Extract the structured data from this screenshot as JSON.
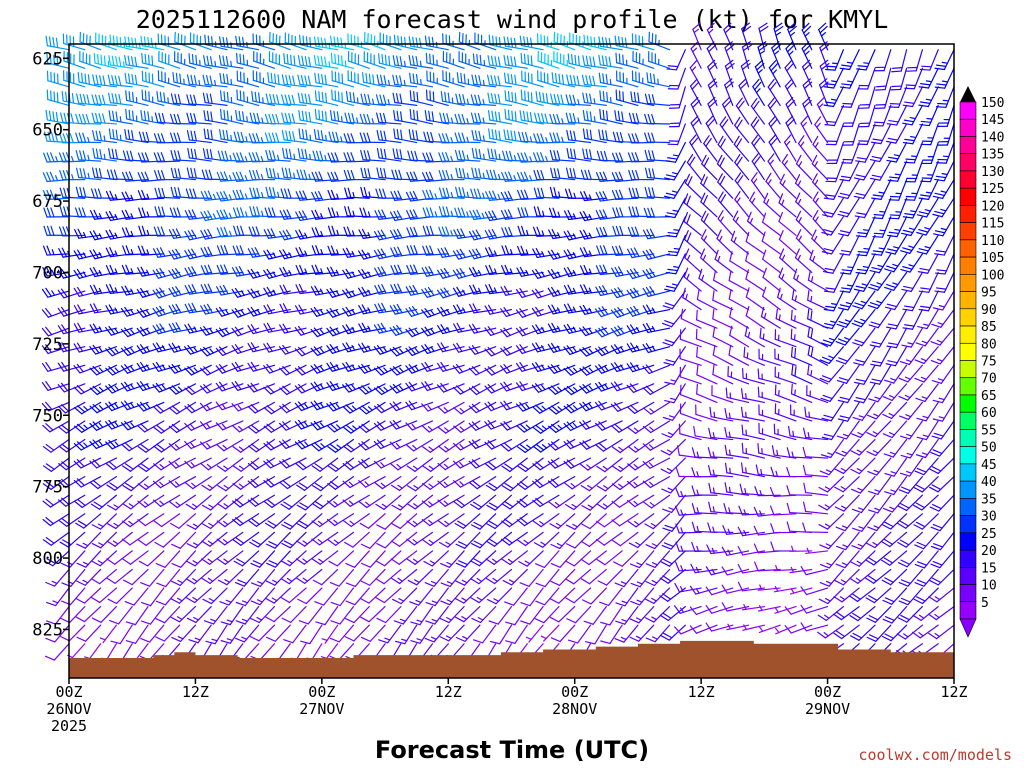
{
  "chart_data": {
    "type": "wind-barb-profile",
    "title": "2025112600 NAM forecast wind profile (kt) for KMYL",
    "xlabel": "Forecast Time (UTC)",
    "ylabel": "",
    "units": "kt",
    "y_ticks": [
      "625",
      "650",
      "675",
      "700",
      "725",
      "750",
      "775",
      "800",
      "825"
    ],
    "y_range_hpa": [
      620,
      842
    ],
    "x_range_hours": [
      0,
      84
    ],
    "x_ticks": [
      {
        "hour": 0,
        "line1": "00Z",
        "line2": "26NOV",
        "line3": "2025"
      },
      {
        "hour": 12,
        "line1": "12Z",
        "line2": "",
        "line3": ""
      },
      {
        "hour": 24,
        "line1": "00Z",
        "line2": "27NOV",
        "line3": ""
      },
      {
        "hour": 36,
        "line1": "12Z",
        "line2": "",
        "line3": ""
      },
      {
        "hour": 48,
        "line1": "00Z",
        "line2": "28NOV",
        "line3": ""
      },
      {
        "hour": 60,
        "line1": "12Z",
        "line2": "",
        "line3": ""
      },
      {
        "hour": 72,
        "line1": "00Z",
        "line2": "29NOV",
        "line3": ""
      },
      {
        "hour": 84,
        "line1": "12Z",
        "line2": "",
        "line3": ""
      }
    ],
    "colorbar": {
      "labels": [
        "150",
        "145",
        "140",
        "135",
        "130",
        "125",
        "120",
        "115",
        "110",
        "105",
        "100",
        "95",
        "90",
        "85",
        "80",
        "75",
        "70",
        "65",
        "60",
        "55",
        "50",
        "45",
        "40",
        "35",
        "30",
        "25",
        "20",
        "15",
        "10",
        "5"
      ],
      "colors": [
        "#ff00ff",
        "#ff00c8",
        "#ff0096",
        "#ff0064",
        "#ff0032",
        "#ff0000",
        "#ff2000",
        "#ff4000",
        "#ff6000",
        "#ff8000",
        "#ff9a00",
        "#ffb400",
        "#ffd200",
        "#ffee00",
        "#ffff00",
        "#c8ff00",
        "#64ff00",
        "#00ff00",
        "#00ff64",
        "#00ffb4",
        "#00ffe6",
        "#00c8ff",
        "#0096ff",
        "#0064ff",
        "#0032ff",
        "#0000ff",
        "#3200ff",
        "#5a00ff",
        "#7800ff",
        "#9600ff"
      ]
    },
    "terrain_color": "#a0522d",
    "terrain_hpa": [
      {
        "hour": 0,
        "p": 835
      },
      {
        "hour": 8,
        "p": 834
      },
      {
        "hour": 10,
        "p": 833
      },
      {
        "hour": 12,
        "p": 834
      },
      {
        "hour": 16,
        "p": 835
      },
      {
        "hour": 22,
        "p": 835
      },
      {
        "hour": 27,
        "p": 834
      },
      {
        "hour": 32,
        "p": 834
      },
      {
        "hour": 38,
        "p": 834
      },
      {
        "hour": 41,
        "p": 833
      },
      {
        "hour": 45,
        "p": 832
      },
      {
        "hour": 50,
        "p": 831
      },
      {
        "hour": 54,
        "p": 830
      },
      {
        "hour": 58,
        "p": 829
      },
      {
        "hour": 61,
        "p": 829
      },
      {
        "hour": 65,
        "p": 830
      },
      {
        "hour": 69,
        "p": 830
      },
      {
        "hour": 73,
        "p": 832
      },
      {
        "hour": 78,
        "p": 833
      },
      {
        "hour": 84,
        "p": 834
      }
    ],
    "barb_regimes": [
      {
        "from_hour": 0,
        "to_hour": 58,
        "upper_dir_deg": 285,
        "upper_speed_kt": 40,
        "lower_dir_deg": 215,
        "lower_speed_kt": 10
      },
      {
        "from_hour": 59,
        "to_hour": 72,
        "upper_dir_deg": 340,
        "upper_speed_kt": 20,
        "lower_dir_deg": 250,
        "lower_speed_kt": 10
      },
      {
        "from_hour": 73,
        "to_hour": 84,
        "upper_dir_deg": 200,
        "upper_speed_kt": 25,
        "lower_dir_deg": 230,
        "lower_speed_kt": 15
      }
    ]
  },
  "credit": "coolwx.com/models"
}
